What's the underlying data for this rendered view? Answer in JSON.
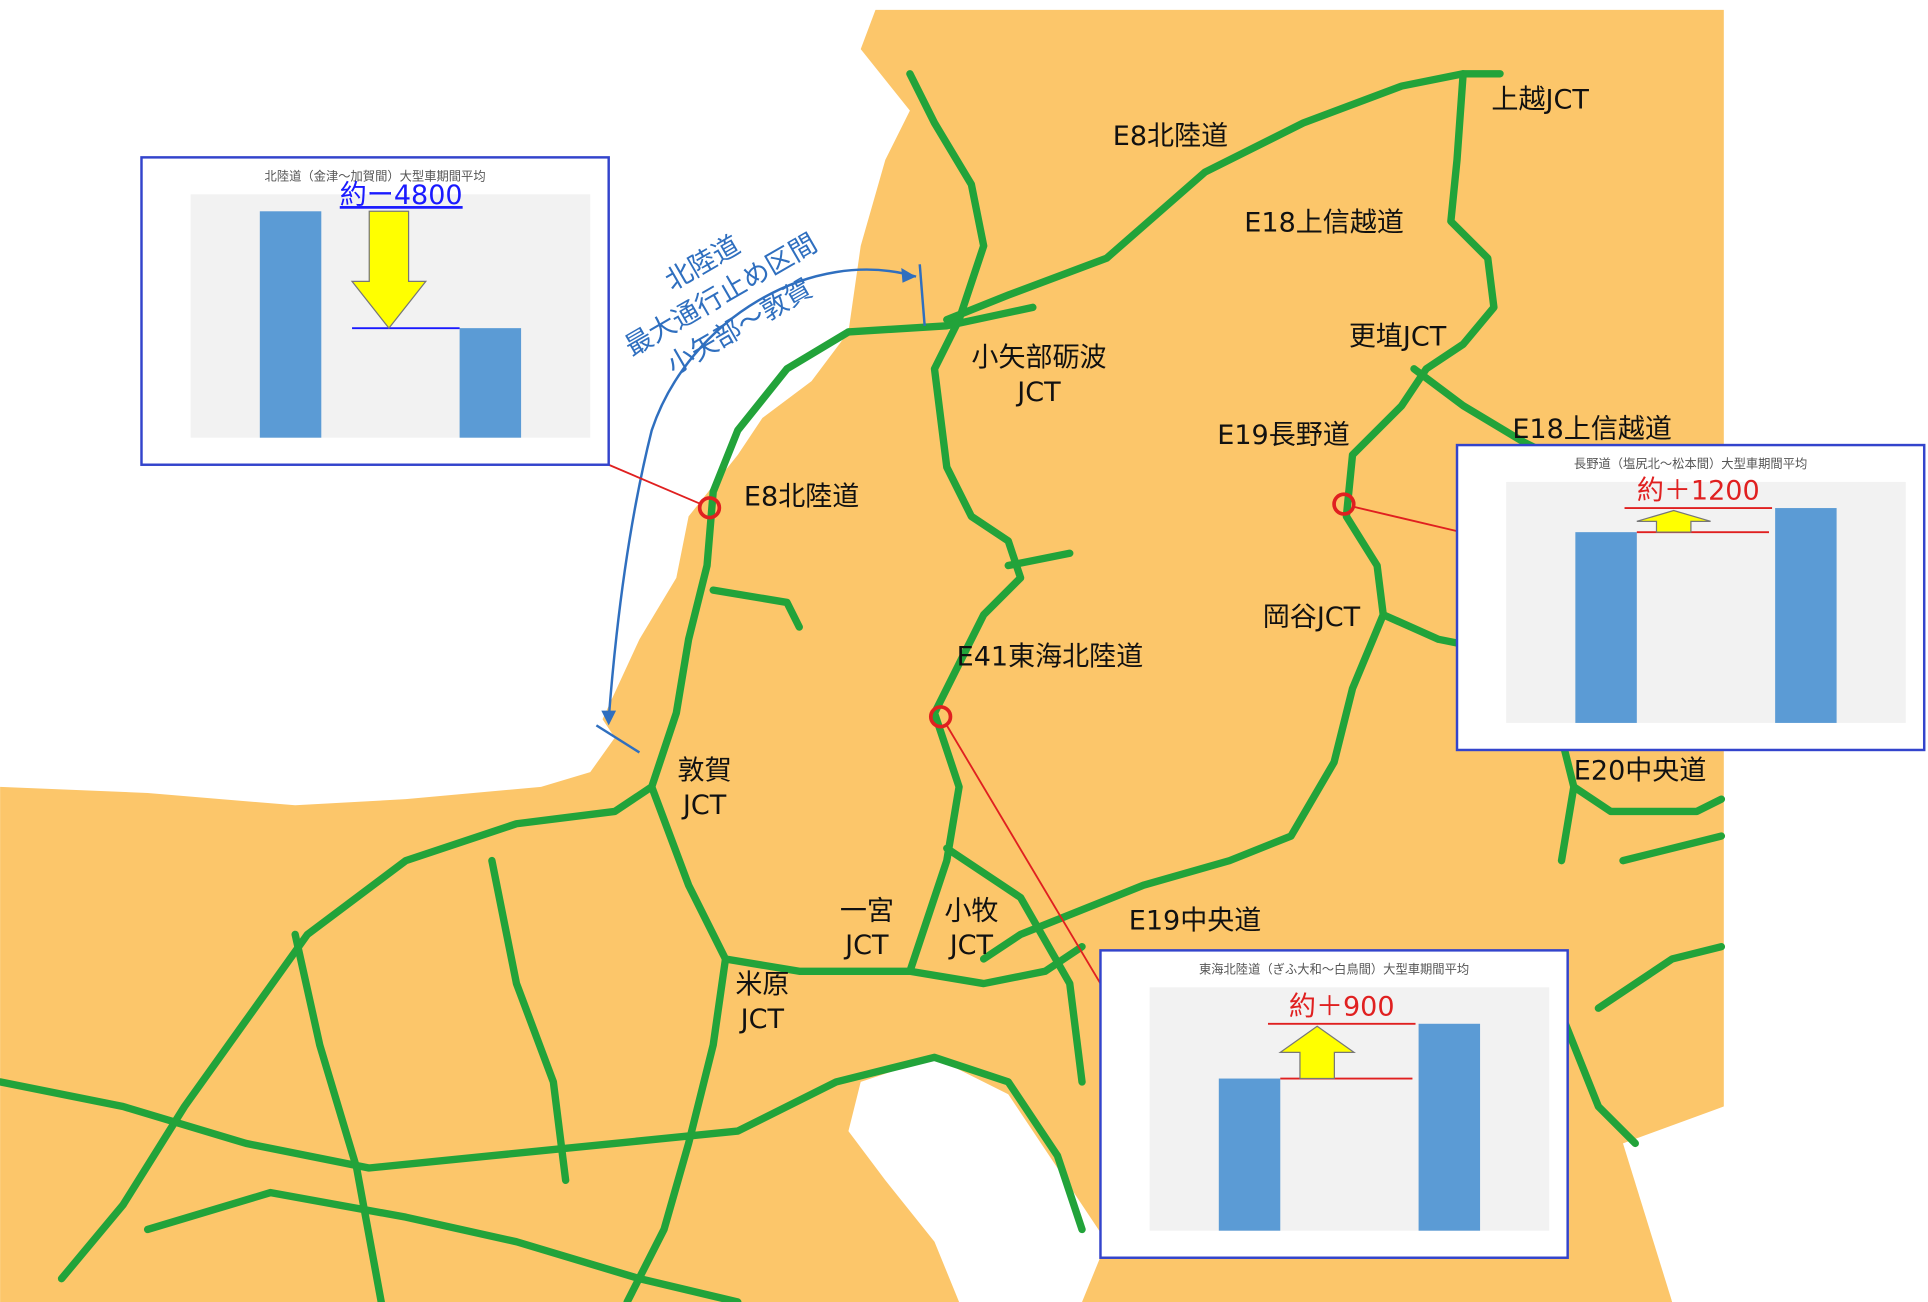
{
  "labels": [
    {
      "lines": [
        "上越JCT"
      ]
    },
    {
      "lines": [
        "E8北陸道"
      ]
    },
    {
      "lines": [
        "E18上信越道"
      ]
    },
    {
      "lines": [
        "更埴JCT"
      ]
    },
    {
      "lines": [
        "小矢部砺波",
        "JCT"
      ]
    },
    {
      "lines": [
        "E18上信越道"
      ]
    },
    {
      "lines": [
        "E19長野道"
      ]
    },
    {
      "lines": [
        "E8北陸道"
      ]
    },
    {
      "lines": [
        "岡谷JCT"
      ]
    },
    {
      "lines": [
        "E41東海北陸道"
      ]
    },
    {
      "lines": [
        "敦賀",
        "JCT"
      ]
    },
    {
      "lines": [
        "E20中央道"
      ]
    },
    {
      "lines": [
        "一宮",
        "JCT"
      ]
    },
    {
      "lines": [
        "小牧",
        "JCT"
      ]
    },
    {
      "lines": [
        "E19中央道"
      ]
    },
    {
      "lines": [
        "米原",
        "JCT"
      ]
    }
  ],
  "notice": [
    "北陸道",
    "最大通行止め区間",
    "小矢部～敦賀"
  ],
  "insets": [
    {
      "title": "北陸道（金津～加賀間）大型車期間平均",
      "change": "約ー4800",
      "values": [
        9300,
        4500
      ],
      "ylim": [
        0,
        10000
      ]
    },
    {
      "title": "長野道（塩尻北～松本間）大型車期間平均",
      "change": "約＋1200",
      "values": [
        9500,
        10700
      ],
      "ylim": [
        0,
        12000
      ]
    },
    {
      "title": "東海北陸道（ぎふ大和～白鳥間）大型車期間平均",
      "change": "約＋900",
      "values": [
        2500,
        3400
      ],
      "ylim": [
        0,
        4000
      ]
    }
  ]
}
